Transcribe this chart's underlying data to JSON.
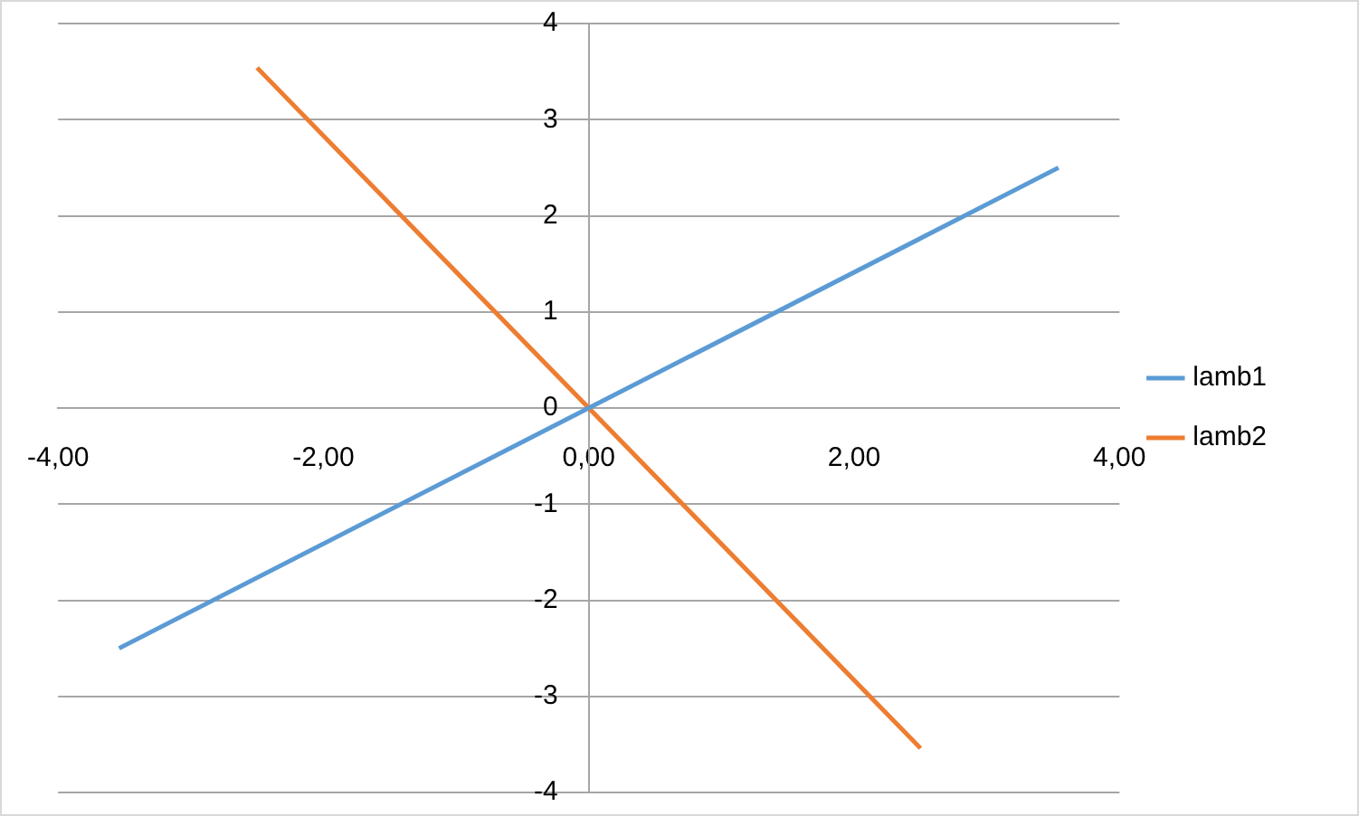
{
  "chart_data": {
    "type": "line",
    "series": [
      {
        "name": "lamb1",
        "color": "#5b9bd5",
        "x": [
          -3.54,
          3.54
        ],
        "values": [
          -2.5,
          2.5
        ]
      },
      {
        "name": "lamb2",
        "color": "#ed7d31",
        "x": [
          -2.5,
          2.5
        ],
        "values": [
          3.54,
          -3.54
        ]
      }
    ],
    "xlim": [
      -4,
      4
    ],
    "xticks": [
      {
        "value": -4,
        "label": "-4,00"
      },
      {
        "value": -2,
        "label": "-2,00"
      },
      {
        "value": 0,
        "label": "0,00"
      },
      {
        "value": 2,
        "label": "2,00"
      },
      {
        "value": 4,
        "label": "4,00"
      }
    ],
    "ylim": [
      -4,
      4
    ],
    "yticks": [
      -4,
      -3,
      -2,
      -1,
      0,
      1,
      2,
      3,
      4
    ],
    "grid": "y",
    "legend": "right",
    "marker": "none",
    "line_style": "solid"
  }
}
